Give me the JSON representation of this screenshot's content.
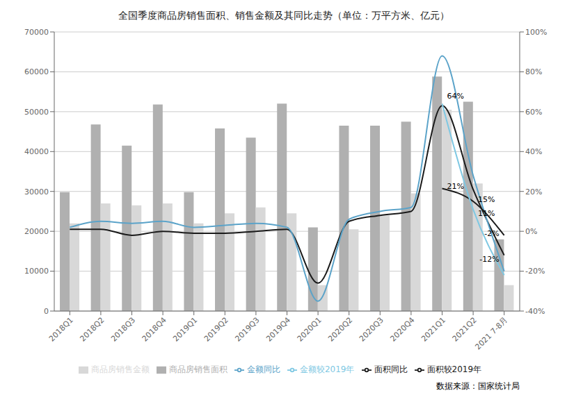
{
  "chart_data": {
    "type": "bar",
    "title": "全国季度商品房销售面积、销售金额及其同比走势（单位：万平方米、亿元）",
    "source": "数据来源：国家统计局",
    "categories": [
      "2018Q1",
      "2018Q2",
      "2018Q3",
      "2018Q4",
      "2019Q1",
      "2019Q2",
      "2019Q3",
      "2019Q4",
      "2020Q1",
      "2020Q2",
      "2020Q3",
      "2020Q4",
      "2021Q1",
      "2021Q2",
      "2021 7-8月"
    ],
    "series": [
      {
        "name": "商品房销售面积",
        "type": "bar",
        "color": "#b0b0b0",
        "values": [
          29800,
          46800,
          41500,
          51800,
          29800,
          45800,
          43500,
          52000,
          21000,
          46500,
          46500,
          47500,
          58800,
          52500,
          18000
        ]
      },
      {
        "name": "商品房销售金额",
        "type": "bar",
        "color": "#d8d8d8",
        "values": [
          22000,
          27000,
          26500,
          27000,
          22000,
          24500,
          26000,
          24500,
          6500,
          20500,
          24000,
          29500,
          50500,
          32000,
          6500
        ]
      },
      {
        "name": "面积同比",
        "type": "line",
        "axis": "y2",
        "color": "#1a1a1a",
        "values": [
          0.01,
          0.01,
          -0.02,
          0.0,
          -0.01,
          -0.01,
          0.0,
          0.01,
          -0.26,
          0.05,
          0.08,
          0.1,
          0.63,
          0.21,
          -0.12
        ]
      },
      {
        "name": "金额同比",
        "type": "line",
        "axis": "y2",
        "color": "#5ba3c9",
        "values": [
          0.02,
          0.05,
          0.04,
          0.05,
          0.02,
          0.03,
          0.04,
          0.02,
          -0.35,
          0.06,
          0.1,
          0.12,
          0.88,
          0.28,
          -0.2
        ]
      },
      {
        "name": "面积较2019年",
        "type": "line",
        "axis": "y2",
        "color": "#1a1a1a",
        "values": [
          null,
          null,
          null,
          null,
          null,
          null,
          null,
          null,
          null,
          null,
          null,
          null,
          0.215,
          0.15,
          -0.02
        ]
      },
      {
        "name": "金额较2019年",
        "type": "line",
        "axis": "y2",
        "color": "#7ec8e3",
        "values": [
          null,
          null,
          null,
          null,
          null,
          null,
          null,
          null,
          null,
          null,
          null,
          null,
          0.64,
          0.11,
          -0.22
        ]
      }
    ],
    "ylim": [
      0,
      70000
    ],
    "yticks": [
      0,
      10000,
      20000,
      30000,
      40000,
      50000,
      60000,
      70000
    ],
    "y2lim": [
      -0.4,
      1.0
    ],
    "y2ticks": [
      {
        "value": -0.4,
        "label": "-40%"
      },
      {
        "value": -0.2,
        "label": "-20%"
      },
      {
        "value": 0.0,
        "label": "0%"
      },
      {
        "value": 0.2,
        "label": "20%"
      },
      {
        "value": 0.4,
        "label": "40%"
      },
      {
        "value": 0.6,
        "label": "60%"
      },
      {
        "value": 0.8,
        "label": "80%"
      },
      {
        "value": 1.0,
        "label": "100%"
      }
    ],
    "grid": true,
    "legend": "bottom",
    "annotations": [
      {
        "text": "64%",
        "x": "2021Q1",
        "y": 0.68
      },
      {
        "text": "21%",
        "x": "2021Q1",
        "y": 0.225
      },
      {
        "text": "15%",
        "x": "2021Q2",
        "y": 0.16
      },
      {
        "text": "11%",
        "x": "2021Q2",
        "y": 0.09
      },
      {
        "text": "-2%",
        "x": "2021 7-8月",
        "y": -0.01
      },
      {
        "text": "-12%",
        "x": "2021 7-8月",
        "y": -0.14
      }
    ]
  }
}
